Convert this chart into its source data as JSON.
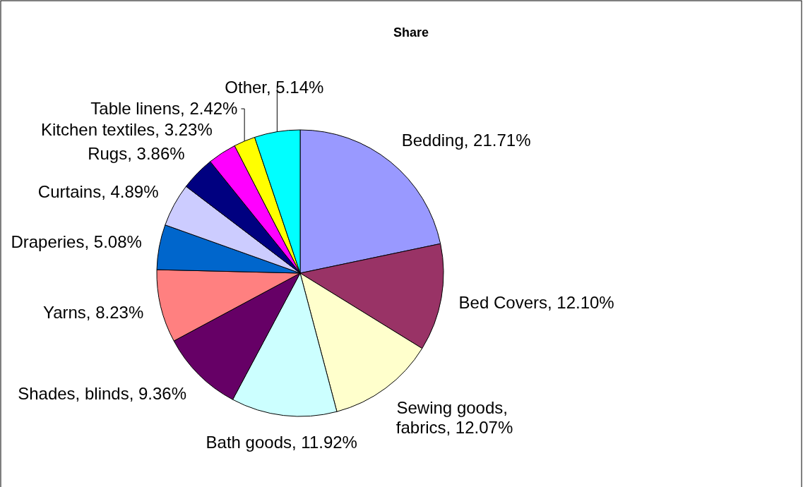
{
  "chart_data": {
    "type": "pie",
    "title": "Share",
    "categories": [
      "Bedding",
      "Bed Covers",
      "Sewing goods, fabrics",
      "Bath goods",
      "Shades, blinds",
      "Yarns",
      "Draperies",
      "Curtains",
      "Rugs",
      "Kitchen textiles",
      "Table linens",
      "Other"
    ],
    "values": [
      21.71,
      12.1,
      12.07,
      11.92,
      9.36,
      8.23,
      5.08,
      4.89,
      3.86,
      3.23,
      2.42,
      5.14
    ],
    "value_labels": [
      "21.71%",
      "12.10%",
      "12.07%",
      "11.92%",
      "9.36%",
      "8.23%",
      "5.08%",
      "4.89%",
      "3.86%",
      "3.23%",
      "2.42%",
      "5.14%"
    ],
    "colors": [
      "#9999ff",
      "#993366",
      "#ffffcc",
      "#ccffff",
      "#660066",
      "#ff8080",
      "#0066cc",
      "#ccccff",
      "#000080",
      "#ff00ff",
      "#ffff00",
      "#00ffff"
    ]
  }
}
